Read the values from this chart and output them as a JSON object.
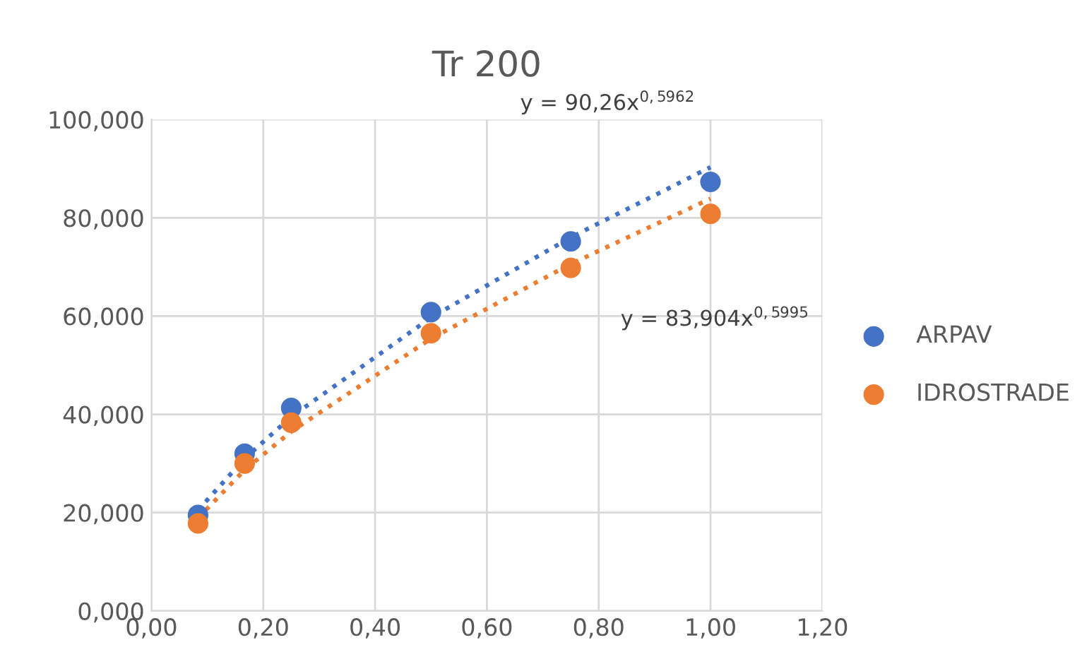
{
  "chart_data": {
    "type": "scatter",
    "title": "Tr 200",
    "x": [
      0.0833,
      0.1667,
      0.25,
      0.5,
      0.75,
      1.0
    ],
    "series": [
      {
        "name": "ARPAV",
        "color": "#4472c4",
        "values": [
          19.5,
          32.0,
          41.3,
          60.8,
          75.2,
          87.3
        ]
      },
      {
        "name": "IDROSTRADE",
        "color": "#ed7d31",
        "values": [
          17.8,
          30.0,
          38.3,
          56.5,
          69.8,
          80.8
        ]
      },
      {
        "type": "line",
        "color": "#4472c4",
        "line_style": "dotted",
        "marker": "none",
        "x": [
          0.0833,
          0.1667,
          0.25,
          0.5,
          0.75,
          1.0
        ],
        "values": [
          20.5,
          31.0,
          39.5,
          59.7,
          76.0,
          90.3
        ]
      },
      {
        "type": "line",
        "color": "#ed7d31",
        "line_style": "dotted",
        "marker": "none",
        "x": [
          0.0833,
          0.1667,
          0.25,
          0.5,
          0.75,
          1.0
        ],
        "values": [
          18.9,
          28.7,
          36.5,
          55.4,
          70.6,
          83.9
        ]
      }
    ],
    "annotations": [
      "y = 90,26x$^{0,5962}$",
      "y = 83,904x$^{0,5995}$"
    ],
    "marker": "circle",
    "grid": true,
    "legend": "right",
    "xlim": [
      0,
      1.2
    ],
    "xticks": [
      {
        "value": 0,
        "label": "0,00"
      },
      {
        "value": 0.2,
        "label": "0,20"
      },
      {
        "value": 0.4,
        "label": "0,40"
      },
      {
        "value": 0.6,
        "label": "0,60"
      },
      {
        "value": 0.8,
        "label": "0,80"
      },
      {
        "value": 1.0,
        "label": "1,00"
      },
      {
        "value": 1.2,
        "label": "1,20"
      }
    ],
    "ylim": [
      0,
      100
    ],
    "yticks": [
      {
        "value": 0,
        "label": "0,000"
      },
      {
        "value": 20,
        "label": "20,000"
      },
      {
        "value": 40,
        "label": "40,000"
      },
      {
        "value": 60,
        "label": "60,000"
      },
      {
        "value": 80,
        "label": "80,000"
      },
      {
        "value": 100,
        "label": "100,000"
      }
    ]
  }
}
